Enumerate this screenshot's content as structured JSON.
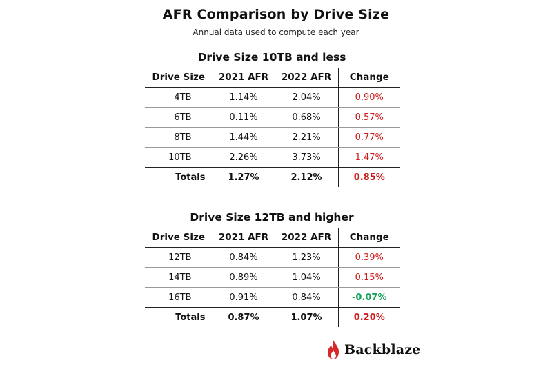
{
  "header": {
    "title": "AFR Comparison by Drive Size",
    "subtitle": "Annual data used to compute each year"
  },
  "columns": [
    "Drive Size",
    "2021 AFR",
    "2022 AFR",
    "Change"
  ],
  "brand": {
    "name": "Backblaze",
    "logo_icon": "flame-icon",
    "logo_color": "#d42a2a"
  },
  "colors": {
    "increase": "#cc1a1a",
    "decrease": "#1aa35a"
  },
  "chart_data": [
    {
      "type": "table",
      "title": "Drive Size 10TB and less",
      "columns": [
        "Drive Size",
        "2021 AFR",
        "2022 AFR",
        "Change"
      ],
      "rows": [
        {
          "size": "4TB",
          "afr_2021": "1.14%",
          "afr_2022": "2.04%",
          "change": "0.90%"
        },
        {
          "size": "6TB",
          "afr_2021": "0.11%",
          "afr_2022": "0.68%",
          "change": "0.57%"
        },
        {
          "size": "8TB",
          "afr_2021": "1.44%",
          "afr_2022": "2.21%",
          "change": "0.77%"
        },
        {
          "size": "10TB",
          "afr_2021": "2.26%",
          "afr_2022": "3.73%",
          "change": "1.47%"
        }
      ],
      "totals": {
        "label": "Totals",
        "afr_2021": "1.27%",
        "afr_2022": "2.12%",
        "change": "0.85%"
      }
    },
    {
      "type": "table",
      "title": "Drive Size 12TB and higher",
      "columns": [
        "Drive Size",
        "2021 AFR",
        "2022 AFR",
        "Change"
      ],
      "rows": [
        {
          "size": "12TB",
          "afr_2021": "0.84%",
          "afr_2022": "1.23%",
          "change": "0.39%"
        },
        {
          "size": "14TB",
          "afr_2021": "0.89%",
          "afr_2022": "1.04%",
          "change": "0.15%"
        },
        {
          "size": "16TB",
          "afr_2021": "0.91%",
          "afr_2022": "0.84%",
          "change": "-0.07%"
        }
      ],
      "totals": {
        "label": "Totals",
        "afr_2021": "0.87%",
        "afr_2022": "1.07%",
        "change": "0.20%"
      }
    }
  ]
}
